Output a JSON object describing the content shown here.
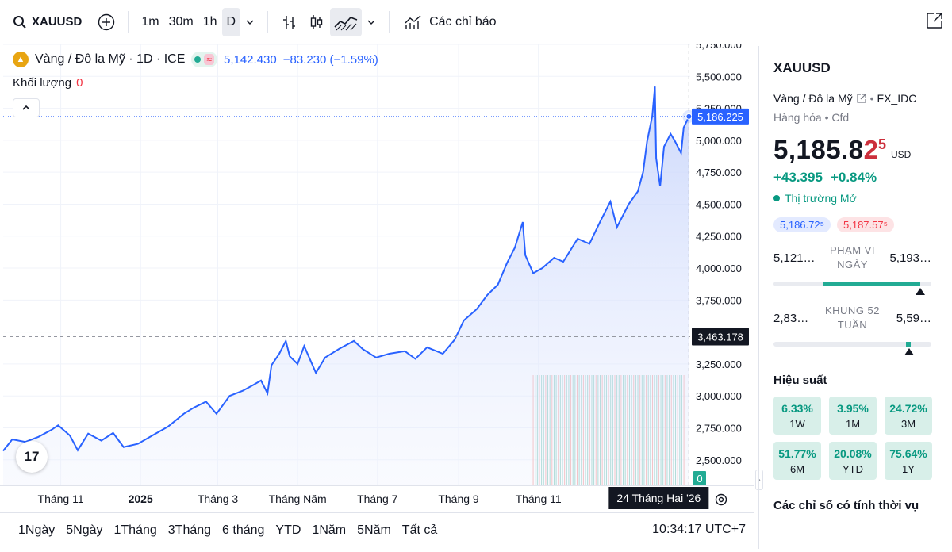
{
  "toolbar": {
    "symbol": "XAUUSD",
    "intervals": [
      "1m",
      "30m",
      "1h",
      "D"
    ],
    "active_interval": "D",
    "indicators_label": "Các chỉ báo"
  },
  "legend": {
    "title": "Vàng / Đô la Mỹ · 1D · ICE",
    "value": "5,142.430",
    "change": "−83.230 (−1.59%)",
    "volume_label": "Khối lượng",
    "volume_value": "0"
  },
  "chart_data": {
    "type": "area",
    "ylim": [
      2300,
      5750
    ],
    "y_ticks": [
      2500,
      2750,
      3000,
      3250,
      3500,
      3750,
      4000,
      4250,
      4500,
      4750,
      5000,
      5250,
      5500,
      5750
    ],
    "y_tick_labels": [
      "2,500.000",
      "2,750.000",
      "3,000.000",
      "3,250.000",
      "3,500.000",
      "3,750.000",
      "4,000.000",
      "4,250.000",
      "4,500.000",
      "4,750.000",
      "5,000.000",
      "5,250.000",
      "5,500.000",
      "5,750.000"
    ],
    "x_start": "2024-09-18",
    "x_end": "2026-02-25",
    "x_ticks": [
      {
        "date": "2024-11-01",
        "label": "Tháng 11"
      },
      {
        "date": "2025-01-01",
        "label": "2025"
      },
      {
        "date": "2025-03-01",
        "label": "Tháng 3"
      },
      {
        "date": "2025-05-01",
        "label": "Tháng Năm"
      },
      {
        "date": "2025-07-01",
        "label": "Tháng 7"
      },
      {
        "date": "2025-09-01",
        "label": "Tháng 9"
      },
      {
        "date": "2025-11-01",
        "label": "Tháng 11"
      }
    ],
    "series": [
      {
        "x": [
          "2024-09-18",
          "2024-09-25",
          "2024-10-05",
          "2024-10-15",
          "2024-10-25",
          "2024-10-30",
          "2024-11-08",
          "2024-11-14",
          "2024-11-22",
          "2024-12-02",
          "2024-12-11",
          "2024-12-19",
          "2024-12-30",
          "2025-01-10",
          "2025-01-22",
          "2025-02-03",
          "2025-02-11",
          "2025-02-20",
          "2025-02-28",
          "2025-03-10",
          "2025-03-20",
          "2025-03-28",
          "2025-04-03",
          "2025-04-08",
          "2025-04-11",
          "2025-04-17",
          "2025-04-22",
          "2025-04-25",
          "2025-05-01",
          "2025-05-06",
          "2025-05-15",
          "2025-05-22",
          "2025-06-02",
          "2025-06-13",
          "2025-06-20",
          "2025-06-30",
          "2025-07-10",
          "2025-07-22",
          "2025-07-30",
          "2025-08-08",
          "2025-08-20",
          "2025-08-29",
          "2025-09-05",
          "2025-09-15",
          "2025-09-23",
          "2025-10-01",
          "2025-10-08",
          "2025-10-14",
          "2025-10-20",
          "2025-10-22",
          "2025-10-28",
          "2025-11-04",
          "2025-11-13",
          "2025-11-20",
          "2025-12-01",
          "2025-12-10",
          "2025-12-19",
          "2025-12-26",
          "2025-12-31",
          "2026-01-09",
          "2026-01-16",
          "2026-01-20",
          "2026-01-23",
          "2026-01-27",
          "2026-01-29",
          "2026-01-30",
          "2026-02-02",
          "2026-02-05",
          "2026-02-10",
          "2026-02-13",
          "2026-02-18",
          "2026-02-20",
          "2026-02-24"
        ],
        "values": [
          2570,
          2660,
          2640,
          2680,
          2735,
          2770,
          2690,
          2575,
          2705,
          2650,
          2710,
          2600,
          2625,
          2690,
          2760,
          2860,
          2910,
          2955,
          2860,
          3000,
          3040,
          3085,
          3120,
          3020,
          3240,
          3330,
          3430,
          3310,
          3250,
          3390,
          3180,
          3300,
          3370,
          3430,
          3365,
          3300,
          3330,
          3350,
          3290,
          3380,
          3330,
          3440,
          3590,
          3680,
          3790,
          3870,
          4040,
          4160,
          4360,
          4100,
          3960,
          4000,
          4080,
          4050,
          4230,
          4190,
          4380,
          4520,
          4320,
          4500,
          4600,
          4750,
          4990,
          5190,
          5420,
          4860,
          4640,
          4950,
          5050,
          5000,
          4900,
          5100,
          5186.225
        ]
      }
    ],
    "current_price_label": "5,186.225",
    "crosshair_price_label": "3,463.178",
    "crosshair_date_label": "24 Tháng Hai '26",
    "volume_label": "0"
  },
  "bottom": {
    "ranges": [
      "1Ngày",
      "5Ngày",
      "1Tháng",
      "3Tháng",
      "6 tháng",
      "YTD",
      "1Năm",
      "5Năm",
      "Tất cả"
    ],
    "clock": "10:34:17 UTC+7"
  },
  "panel": {
    "symbol": "XAUUSD",
    "name": "Vàng / Đô la Mỹ",
    "exchange": "FX_IDC",
    "category": "Hàng hóa • Cfd",
    "price_main": "5,185.8",
    "price_last": "2",
    "price_sup": "5",
    "currency": "USD",
    "change_abs": "+43.395",
    "change_pct": "+0.84%",
    "market_status": "Thị trường Mở",
    "bid": "5,186.72⁵",
    "ask": "5,187.57⁵",
    "day_low": "5,121…",
    "day_high": "5,193…",
    "day_label": "PHẠM VI NGÀY",
    "day_marker_pct": 0.93,
    "year_low": "2,83…",
    "year_high": "5,59…",
    "year_label": "KHUNG 52 TUẦN",
    "year_marker_pct": 0.86,
    "performance_title": "Hiệu suất",
    "performance": [
      {
        "value": "6.33%",
        "period": "1W"
      },
      {
        "value": "3.95%",
        "period": "1M"
      },
      {
        "value": "24.72%",
        "period": "3M"
      },
      {
        "value": "51.77%",
        "period": "6M"
      },
      {
        "value": "20.08%",
        "period": "YTD"
      },
      {
        "value": "75.64%",
        "period": "1Y"
      }
    ],
    "seasonal_title": "Các chỉ số có tính thời vụ"
  },
  "colors": {
    "line": "#2962ff",
    "area_top": "#c3d1fb",
    "positive": "#089981",
    "negative": "#f23645"
  }
}
